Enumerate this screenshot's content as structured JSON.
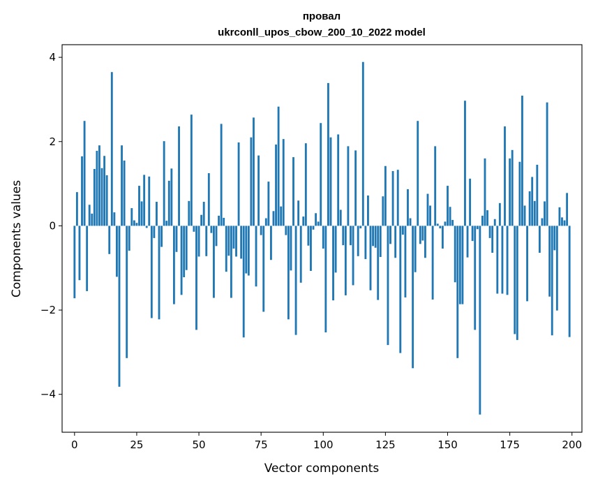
{
  "chart_data": {
    "type": "bar",
    "title_lines": [
      "провал",
      "ukrconll_upos_cbow_200_10_2022 model"
    ],
    "xlabel": "Vector components",
    "ylabel": "Components values",
    "xlim": [
      -5,
      204
    ],
    "ylim": [
      -4.9,
      4.3
    ],
    "xticks": [
      0,
      25,
      50,
      75,
      100,
      125,
      150,
      175,
      200
    ],
    "xtick_labels": [
      "0",
      "25",
      "50",
      "75",
      "100",
      "125",
      "150",
      "175",
      "200"
    ],
    "yticks": [
      -4,
      -2,
      0,
      2,
      4
    ],
    "ytick_labels": [
      "−4",
      "−2",
      "0",
      "2",
      "4"
    ],
    "grid": false,
    "bar_color": "#1f77b4",
    "values": [
      -1.72,
      0.8,
      -1.29,
      1.65,
      2.49,
      -1.55,
      0.5,
      0.29,
      1.35,
      1.78,
      1.91,
      1.37,
      1.66,
      1.2,
      -0.67,
      3.65,
      0.32,
      -1.21,
      -3.82,
      1.91,
      1.55,
      -3.14,
      -0.59,
      0.42,
      0.13,
      0.07,
      0.95,
      0.58,
      1.21,
      -0.05,
      1.17,
      -2.19,
      -0.29,
      0.57,
      -2.22,
      -0.5,
      2.01,
      0.12,
      1.07,
      1.36,
      -1.86,
      -0.62,
      2.36,
      -1.64,
      -1.22,
      -1.05,
      0.59,
      2.64,
      -0.14,
      -2.47,
      -0.73,
      0.26,
      0.57,
      -0.72,
      1.25,
      -0.17,
      -1.71,
      -0.48,
      0.24,
      2.42,
      0.19,
      -1.09,
      -0.71,
      -1.71,
      -0.54,
      -0.73,
      1.98,
      -0.78,
      -2.65,
      -1.13,
      -1.18,
      2.1,
      2.57,
      -1.44,
      1.67,
      -0.22,
      -2.04,
      0.18,
      1.05,
      -0.81,
      0.35,
      1.93,
      2.83,
      0.46,
      2.06,
      -0.22,
      -2.22,
      -1.06,
      1.63,
      -2.59,
      0.6,
      -1.35,
      0.22,
      1.96,
      -0.47,
      -1.07,
      -0.09,
      0.3,
      0.1,
      2.44,
      -0.54,
      -2.53,
      3.39,
      2.1,
      -1.77,
      -1.11,
      2.17,
      0.38,
      -0.46,
      -1.65,
      1.89,
      -0.46,
      -1.41,
      1.79,
      -0.72,
      -0.06,
      3.89,
      -0.79,
      0.72,
      -1.53,
      -0.48,
      -0.52,
      -1.76,
      -0.74,
      0.7,
      1.42,
      -2.83,
      -0.43,
      1.3,
      -0.76,
      1.33,
      -3.02,
      -0.21,
      -1.7,
      0.87,
      0.18,
      -3.38,
      -1.1,
      2.49,
      -0.43,
      -0.35,
      -0.76,
      0.76,
      0.48,
      -1.75,
      1.89,
      0.05,
      -0.06,
      -0.54,
      0.1,
      0.95,
      0.45,
      0.14,
      -1.34,
      -3.14,
      -1.86,
      -1.86,
      2.97,
      -0.75,
      1.12,
      -0.36,
      -2.47,
      -0.08,
      -4.48,
      0.24,
      1.6,
      0.37,
      -0.29,
      -0.64,
      0.16,
      -1.61,
      0.54,
      -1.61,
      2.36,
      -1.64,
      1.6,
      1.8,
      -2.57,
      -2.71,
      1.52,
      3.09,
      0.48,
      -1.79,
      0.82,
      1.16,
      0.59,
      1.45,
      -0.64,
      0.18,
      0.58,
      2.93,
      -1.68,
      -2.6,
      -0.58,
      -2.01,
      0.44,
      0.2,
      0.13,
      0.78,
      -2.64
    ]
  }
}
